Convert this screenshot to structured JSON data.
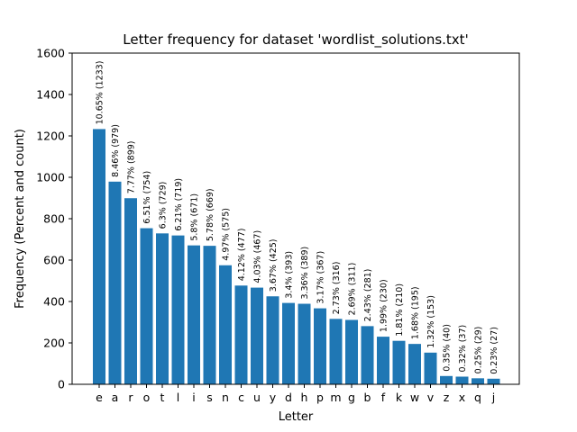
{
  "chart_data": {
    "type": "bar",
    "title": "Letter frequency for dataset 'wordlist_solutions.txt'",
    "xlabel": "Letter",
    "ylabel": "Frequency (Percent and count)",
    "ylim": [
      0,
      1600
    ],
    "yticks": [
      0,
      200,
      400,
      600,
      800,
      1000,
      1200,
      1400,
      1600
    ],
    "grid": false,
    "bar_color": "#1f77b4",
    "categories": [
      "e",
      "a",
      "r",
      "o",
      "t",
      "l",
      "i",
      "s",
      "n",
      "c",
      "u",
      "y",
      "d",
      "h",
      "p",
      "m",
      "g",
      "b",
      "f",
      "k",
      "w",
      "v",
      "z",
      "x",
      "q",
      "j"
    ],
    "values": [
      1233,
      979,
      899,
      754,
      729,
      719,
      671,
      669,
      575,
      477,
      467,
      425,
      393,
      389,
      367,
      316,
      311,
      281,
      230,
      210,
      195,
      153,
      40,
      37,
      29,
      27
    ],
    "data_labels": [
      "10.65% (1233)",
      "8.46% (979)",
      "7.77% (899)",
      "6.51% (754)",
      "6.3% (729)",
      "6.21% (719)",
      "5.8% (671)",
      "5.78% (669)",
      "4.97% (575)",
      "4.12% (477)",
      "4.03% (467)",
      "3.67% (425)",
      "3.4% (393)",
      "3.36% (389)",
      "3.17% (367)",
      "2.73% (316)",
      "2.69% (311)",
      "2.43% (281)",
      "1.99% (230)",
      "1.81% (210)",
      "1.68% (195)",
      "1.32% (153)",
      "0.35% (40)",
      "0.32% (37)",
      "0.25% (29)",
      "0.23% (27)"
    ]
  }
}
